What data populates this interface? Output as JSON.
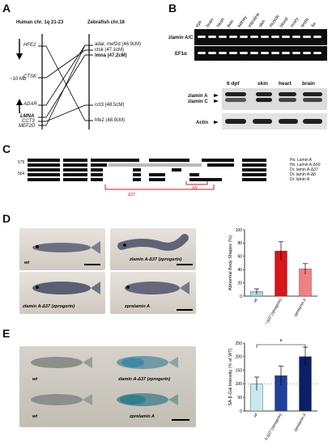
{
  "panel_labels": {
    "a": "A",
    "b": "B",
    "c": "C",
    "d": "D",
    "e": "E"
  },
  "panel_a": {
    "human_title": "Human chr. 1q 21-23",
    "zebrafish_title": "Zebrafish chr.16",
    "distance_label": "~10 Mb",
    "human_genes": [
      "HFE2",
      "CTSK",
      "ADAR",
      "LMNA",
      "CCT3",
      "MEF2D"
    ],
    "zebrafish_genes": [
      "adar, mef2d (46.9cM)",
      "ctsk (47.1cM)",
      "lmna (47.2cM)",
      "cct3 (48.5cM)",
      "hfe2 (48.9cM)"
    ]
  },
  "panel_b": {
    "tissues": [
      "eye",
      "brain",
      "heart",
      "liver",
      "kidney",
      "intestine",
      "skin",
      "muscle",
      "blood",
      "ovary",
      "testis",
      "fin"
    ],
    "rows": [
      "zlamin A/C",
      "EF1α"
    ],
    "wb_columns": [
      "6 dpf",
      "skin",
      "heart",
      "brain"
    ],
    "wb_rows": [
      "zlamin A",
      "zlamin C",
      "Actin"
    ]
  },
  "panel_c": {
    "pos_top": "579",
    "pos_bottom": "564",
    "legend": [
      "Hs. Lamin A",
      "Hs. Lamin A-Δ50",
      "Dr. lamin A-Δ37",
      "Dr. lamin A-Δ8",
      "Dr. lamin A"
    ],
    "brackets": [
      "Δ37",
      "Δ8"
    ]
  },
  "panel_d": {
    "fish_labels": [
      "wt",
      "zlamin A-Δ37 (zprogerin)",
      "zlamin A-Δ37 (zprogerin)",
      "zprelamin A"
    ],
    "chart_data": {
      "type": "bar",
      "ylabel": "Abnormal Body Shapes (%)",
      "categories": [
        "wt",
        "zlamin A-Δ37 (zprogerin)",
        "zprelamin A"
      ],
      "values": [
        7,
        68,
        41
      ],
      "errors": [
        4,
        14,
        8
      ],
      "ylim": [
        0,
        100
      ],
      "yticks": [
        "0",
        "20",
        "40",
        "60",
        "80",
        "100"
      ],
      "colors": [
        "#a9d9e3",
        "#d8161c",
        "#f08080"
      ]
    }
  },
  "panel_e": {
    "fish_labels": [
      "wt",
      "zlamin A-Δ37 (zprogerin)",
      "wt",
      "zprelamin A"
    ],
    "chart_data": {
      "type": "bar",
      "ylabel": "SA-β-Gal Intensity (% of WT)",
      "categories": [
        "wt",
        "zlamin A-Δ37 (zprogerin)",
        "zprelamin A"
      ],
      "values": [
        100,
        130,
        200
      ],
      "errors": [
        25,
        35,
        35
      ],
      "ylim": [
        0,
        250
      ],
      "yticks": [
        "0",
        "50",
        "100",
        "150",
        "200",
        "250"
      ],
      "significance": "*",
      "colors": [
        "#c9e8ef",
        "#1f3f9a",
        "#0a1f66"
      ]
    }
  }
}
